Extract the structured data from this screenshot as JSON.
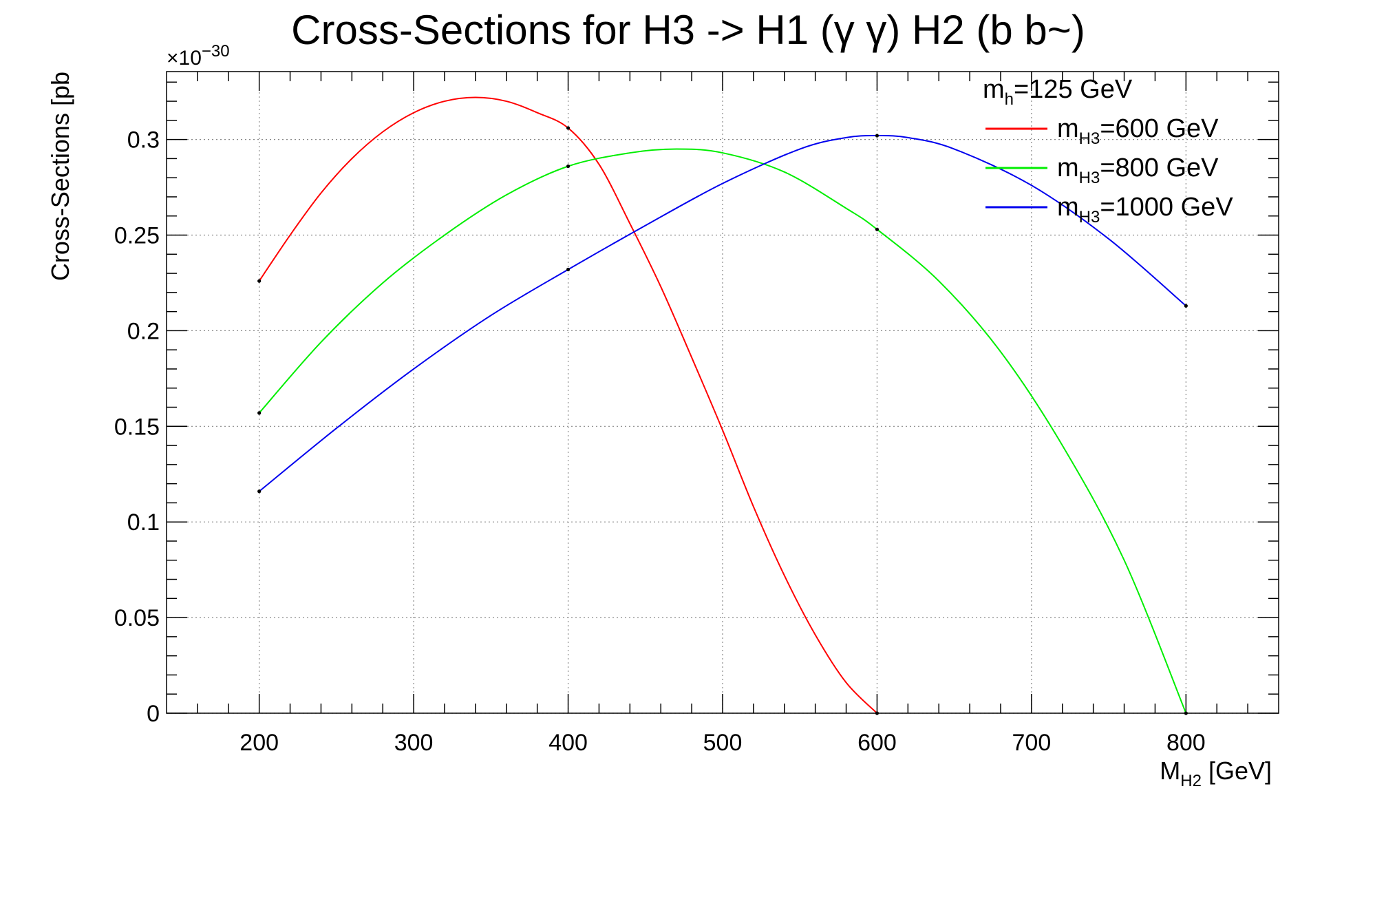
{
  "chart_data": {
    "type": "line",
    "title": "Cross-Sections for H3 -> H1 (γ γ) H2 (b b~)",
    "xlabel": {
      "main": "M",
      "sub": "H2",
      "rest": " [GeV]"
    },
    "ylabel": "Cross-Sections [pb",
    "y_multiplier": {
      "base": "×10",
      "exponent": "−30"
    },
    "xlim": [
      140,
      860
    ],
    "ylim": [
      0,
      0.3355
    ],
    "xticks": [
      200,
      300,
      400,
      500,
      600,
      700,
      800
    ],
    "xtick_labels": [
      "200",
      "300",
      "400",
      "500",
      "600",
      "700",
      "800"
    ],
    "yticks": [
      0,
      0.05,
      0.1,
      0.15,
      0.2,
      0.25,
      0.3
    ],
    "ytick_labels": [
      "0",
      "0.05",
      "0.1",
      "0.15",
      "0.2",
      "0.25",
      "0.3"
    ],
    "grid": true,
    "legend_position": "top-right",
    "legend_header": {
      "main": "m",
      "sub": "h",
      "rest": "=125 GeV"
    },
    "series": [
      {
        "name": "m_H3=600 GeV",
        "label_main": "m",
        "label_sub": "H3",
        "label_rest": "=600 GeV",
        "color": "#ff0000",
        "x": [
          200,
          220,
          240,
          260,
          280,
          300,
          320,
          340,
          360,
          380,
          400,
          420,
          440,
          460,
          480,
          500,
          520,
          540,
          560,
          580,
          600
        ],
        "y": [
          0.226,
          0.25,
          0.272,
          0.29,
          0.304,
          0.314,
          0.32,
          0.322,
          0.32,
          0.314,
          0.306,
          0.287,
          0.256,
          0.223,
          0.186,
          0.148,
          0.108,
          0.072,
          0.041,
          0.016,
          0.0
        ],
        "markers_x": [
          200,
          400,
          600
        ],
        "markers_y": [
          0.226,
          0.306,
          0.0
        ]
      },
      {
        "name": "m_H3=800 GeV",
        "label_main": "m",
        "label_sub": "H3",
        "label_rest": "=800 GeV",
        "color": "#00ee00",
        "x": [
          200,
          240,
          280,
          320,
          360,
          400,
          440,
          470,
          500,
          540,
          580,
          600,
          640,
          680,
          720,
          760,
          800
        ],
        "y": [
          0.157,
          0.194,
          0.225,
          0.25,
          0.271,
          0.286,
          0.293,
          0.295,
          0.293,
          0.283,
          0.264,
          0.253,
          0.226,
          0.189,
          0.14,
          0.08,
          0.0
        ],
        "markers_x": [
          200,
          400,
          600,
          800
        ],
        "markers_y": [
          0.157,
          0.286,
          0.253,
          0.0
        ]
      },
      {
        "name": "m_H3=1000 GeV",
        "label_main": "m",
        "label_sub": "H3",
        "label_rest": "=1000 GeV",
        "color": "#0000ee",
        "x": [
          200,
          250,
          300,
          350,
          400,
          450,
          500,
          550,
          580,
          600,
          620,
          650,
          700,
          750,
          800
        ],
        "y": [
          0.116,
          0.149,
          0.18,
          0.208,
          0.232,
          0.255,
          0.277,
          0.295,
          0.301,
          0.302,
          0.301,
          0.295,
          0.276,
          0.248,
          0.213
        ],
        "markers_x": [
          200,
          400,
          600,
          800
        ],
        "markers_y": [
          0.116,
          0.232,
          0.302,
          0.213
        ]
      }
    ]
  }
}
